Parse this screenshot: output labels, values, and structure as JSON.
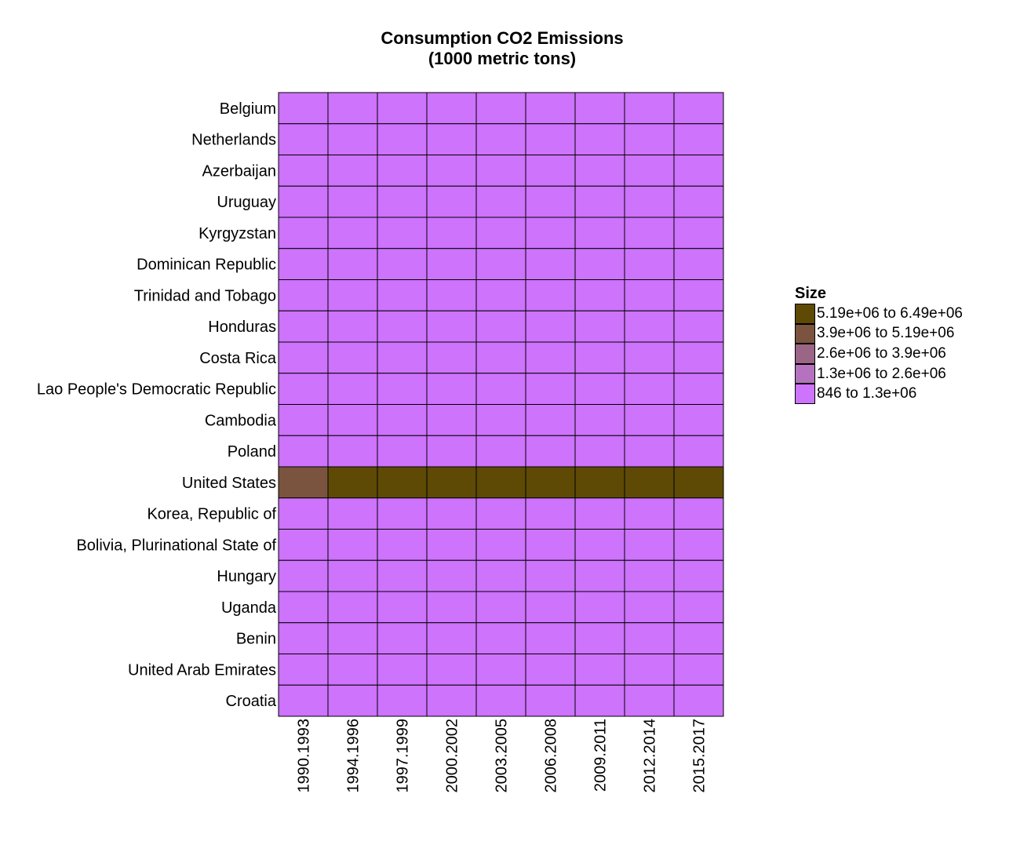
{
  "title": {
    "line1": "Consumption CO2 Emissions",
    "line2": "(1000 metric tons)"
  },
  "legend": {
    "title": "Size",
    "items": [
      {
        "label": "5.19e+06 to 6.49e+06",
        "color": "#5e4a04"
      },
      {
        "label": "3.9e+06 to 5.19e+06",
        "color": "#7a543e"
      },
      {
        "label": "2.6e+06 to 3.9e+06",
        "color": "#9b6585"
      },
      {
        "label": "1.3e+06 to 2.6e+06",
        "color": "#b573bf"
      },
      {
        "label": "846 to 1.3e+06",
        "color": "#cd73fc"
      }
    ]
  },
  "chart_data": {
    "type": "heatmap",
    "title": "Consumption CO2 Emissions (1000 metric tons)",
    "xlabel": "",
    "ylabel": "",
    "x": [
      "1990.1993",
      "1994.1996",
      "1997.1999",
      "2000.2002",
      "2003.2005",
      "2006.2008",
      "2009.2011",
      "2012.2014",
      "2015.2017"
    ],
    "y": [
      "Belgium",
      "Netherlands",
      "Azerbaijan",
      "Uruguay",
      "Kyrgyzstan",
      "Dominican Republic",
      "Trinidad and Tobago",
      "Honduras",
      "Costa Rica",
      "Lao People's Democratic Republic",
      "Cambodia",
      "Poland",
      "United States",
      "Korea, Republic of",
      "Bolivia, Plurinational State of",
      "Hungary",
      "Uganda",
      "Benin",
      "United Arab Emirates",
      "Croatia"
    ],
    "legend_position": "right",
    "grid": false,
    "bins": [
      "846 to 1.3e+06",
      "1.3e+06 to 2.6e+06",
      "2.6e+06 to 3.9e+06",
      "3.9e+06 to 5.19e+06",
      "5.19e+06 to 6.49e+06"
    ],
    "cells": [
      [
        "846 to 1.3e+06",
        "846 to 1.3e+06",
        "846 to 1.3e+06",
        "846 to 1.3e+06",
        "846 to 1.3e+06",
        "846 to 1.3e+06",
        "846 to 1.3e+06",
        "846 to 1.3e+06",
        "846 to 1.3e+06"
      ],
      [
        "846 to 1.3e+06",
        "846 to 1.3e+06",
        "846 to 1.3e+06",
        "846 to 1.3e+06",
        "846 to 1.3e+06",
        "846 to 1.3e+06",
        "846 to 1.3e+06",
        "846 to 1.3e+06",
        "846 to 1.3e+06"
      ],
      [
        "846 to 1.3e+06",
        "846 to 1.3e+06",
        "846 to 1.3e+06",
        "846 to 1.3e+06",
        "846 to 1.3e+06",
        "846 to 1.3e+06",
        "846 to 1.3e+06",
        "846 to 1.3e+06",
        "846 to 1.3e+06"
      ],
      [
        "846 to 1.3e+06",
        "846 to 1.3e+06",
        "846 to 1.3e+06",
        "846 to 1.3e+06",
        "846 to 1.3e+06",
        "846 to 1.3e+06",
        "846 to 1.3e+06",
        "846 to 1.3e+06",
        "846 to 1.3e+06"
      ],
      [
        "846 to 1.3e+06",
        "846 to 1.3e+06",
        "846 to 1.3e+06",
        "846 to 1.3e+06",
        "846 to 1.3e+06",
        "846 to 1.3e+06",
        "846 to 1.3e+06",
        "846 to 1.3e+06",
        "846 to 1.3e+06"
      ],
      [
        "846 to 1.3e+06",
        "846 to 1.3e+06",
        "846 to 1.3e+06",
        "846 to 1.3e+06",
        "846 to 1.3e+06",
        "846 to 1.3e+06",
        "846 to 1.3e+06",
        "846 to 1.3e+06",
        "846 to 1.3e+06"
      ],
      [
        "846 to 1.3e+06",
        "846 to 1.3e+06",
        "846 to 1.3e+06",
        "846 to 1.3e+06",
        "846 to 1.3e+06",
        "846 to 1.3e+06",
        "846 to 1.3e+06",
        "846 to 1.3e+06",
        "846 to 1.3e+06"
      ],
      [
        "846 to 1.3e+06",
        "846 to 1.3e+06",
        "846 to 1.3e+06",
        "846 to 1.3e+06",
        "846 to 1.3e+06",
        "846 to 1.3e+06",
        "846 to 1.3e+06",
        "846 to 1.3e+06",
        "846 to 1.3e+06"
      ],
      [
        "846 to 1.3e+06",
        "846 to 1.3e+06",
        "846 to 1.3e+06",
        "846 to 1.3e+06",
        "846 to 1.3e+06",
        "846 to 1.3e+06",
        "846 to 1.3e+06",
        "846 to 1.3e+06",
        "846 to 1.3e+06"
      ],
      [
        "846 to 1.3e+06",
        "846 to 1.3e+06",
        "846 to 1.3e+06",
        "846 to 1.3e+06",
        "846 to 1.3e+06",
        "846 to 1.3e+06",
        "846 to 1.3e+06",
        "846 to 1.3e+06",
        "846 to 1.3e+06"
      ],
      [
        "846 to 1.3e+06",
        "846 to 1.3e+06",
        "846 to 1.3e+06",
        "846 to 1.3e+06",
        "846 to 1.3e+06",
        "846 to 1.3e+06",
        "846 to 1.3e+06",
        "846 to 1.3e+06",
        "846 to 1.3e+06"
      ],
      [
        "846 to 1.3e+06",
        "846 to 1.3e+06",
        "846 to 1.3e+06",
        "846 to 1.3e+06",
        "846 to 1.3e+06",
        "846 to 1.3e+06",
        "846 to 1.3e+06",
        "846 to 1.3e+06",
        "846 to 1.3e+06"
      ],
      [
        "3.9e+06 to 5.19e+06",
        "5.19e+06 to 6.49e+06",
        "5.19e+06 to 6.49e+06",
        "5.19e+06 to 6.49e+06",
        "5.19e+06 to 6.49e+06",
        "5.19e+06 to 6.49e+06",
        "5.19e+06 to 6.49e+06",
        "5.19e+06 to 6.49e+06",
        "5.19e+06 to 6.49e+06"
      ],
      [
        "846 to 1.3e+06",
        "846 to 1.3e+06",
        "846 to 1.3e+06",
        "846 to 1.3e+06",
        "846 to 1.3e+06",
        "846 to 1.3e+06",
        "846 to 1.3e+06",
        "846 to 1.3e+06",
        "846 to 1.3e+06"
      ],
      [
        "846 to 1.3e+06",
        "846 to 1.3e+06",
        "846 to 1.3e+06",
        "846 to 1.3e+06",
        "846 to 1.3e+06",
        "846 to 1.3e+06",
        "846 to 1.3e+06",
        "846 to 1.3e+06",
        "846 to 1.3e+06"
      ],
      [
        "846 to 1.3e+06",
        "846 to 1.3e+06",
        "846 to 1.3e+06",
        "846 to 1.3e+06",
        "846 to 1.3e+06",
        "846 to 1.3e+06",
        "846 to 1.3e+06",
        "846 to 1.3e+06",
        "846 to 1.3e+06"
      ],
      [
        "846 to 1.3e+06",
        "846 to 1.3e+06",
        "846 to 1.3e+06",
        "846 to 1.3e+06",
        "846 to 1.3e+06",
        "846 to 1.3e+06",
        "846 to 1.3e+06",
        "846 to 1.3e+06",
        "846 to 1.3e+06"
      ],
      [
        "846 to 1.3e+06",
        "846 to 1.3e+06",
        "846 to 1.3e+06",
        "846 to 1.3e+06",
        "846 to 1.3e+06",
        "846 to 1.3e+06",
        "846 to 1.3e+06",
        "846 to 1.3e+06",
        "846 to 1.3e+06"
      ],
      [
        "846 to 1.3e+06",
        "846 to 1.3e+06",
        "846 to 1.3e+06",
        "846 to 1.3e+06",
        "846 to 1.3e+06",
        "846 to 1.3e+06",
        "846 to 1.3e+06",
        "846 to 1.3e+06",
        "846 to 1.3e+06"
      ],
      [
        "846 to 1.3e+06",
        "846 to 1.3e+06",
        "846 to 1.3e+06",
        "846 to 1.3e+06",
        "846 to 1.3e+06",
        "846 to 1.3e+06",
        "846 to 1.3e+06",
        "846 to 1.3e+06",
        "846 to 1.3e+06"
      ]
    ]
  }
}
